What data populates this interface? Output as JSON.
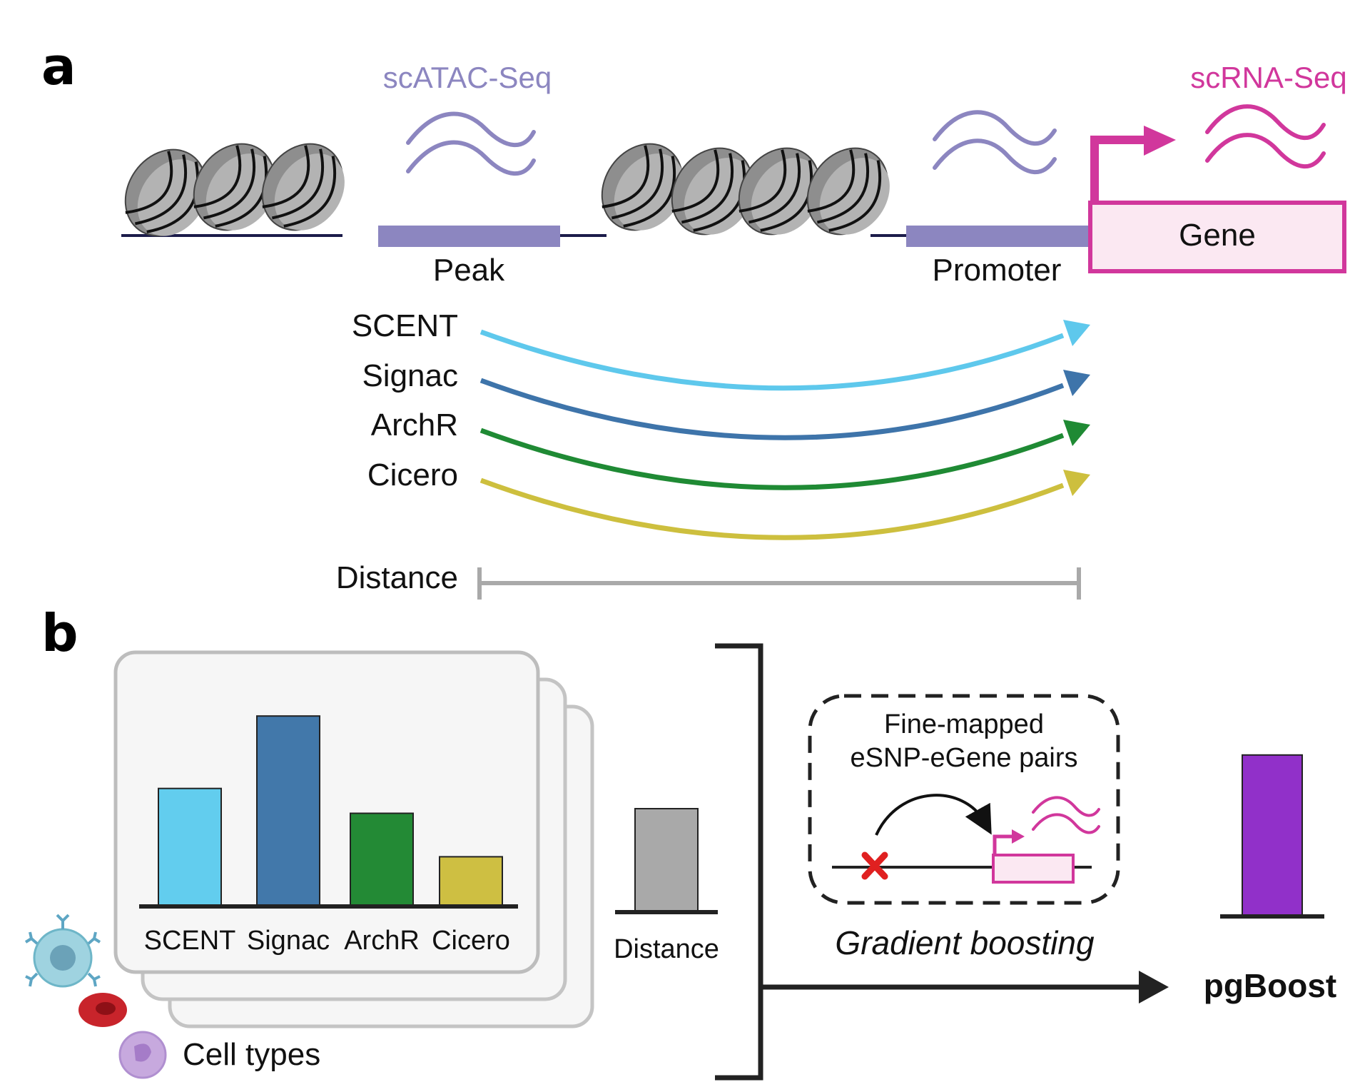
{
  "panel_a": {
    "letter": "a",
    "assay_atac": "scATAC-Seq",
    "assay_rna": "scRNA-Seq",
    "gene_label": "Gene",
    "peak_label": "Peak",
    "promoter_label": "Promoter",
    "methods": [
      {
        "name": "SCENT",
        "color": "#5ec8ec"
      },
      {
        "name": "Signac",
        "color": "#3e74aa"
      },
      {
        "name": "ArchR",
        "color": "#1f8a34"
      },
      {
        "name": "Cicero",
        "color": "#cdbf3e"
      }
    ],
    "distance_label": "Distance",
    "colors": {
      "atac": "#8c86c0",
      "rna": "#d1379c",
      "nucleosome": "#9a9a9a",
      "distance_bar": "#a9a9a9"
    }
  },
  "panel_b": {
    "letter": "b",
    "bars": [
      {
        "label": "SCENT",
        "value": 0.57,
        "color": "#62cdee"
      },
      {
        "label": "Signac",
        "value": 0.92,
        "color": "#4278aa"
      },
      {
        "label": "ArchR",
        "value": 0.45,
        "color": "#238a35"
      },
      {
        "label": "Cicero",
        "value": 0.24,
        "color": "#cebf42"
      }
    ],
    "distance_bar": {
      "label": "Distance",
      "value": 0.5,
      "color": "#a9a9a9"
    },
    "cell_types_label": "Cell types",
    "finemap_line1": "Fine-mapped",
    "finemap_line2": "eSNP-eGene pairs",
    "method_label": "Gradient boosting",
    "output_bar": {
      "label": "pgBoost",
      "value": 0.78,
      "color": "#9130c9"
    }
  }
}
